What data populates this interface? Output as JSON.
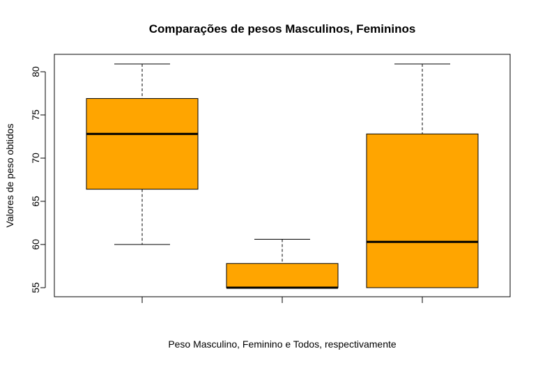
{
  "chart_data": {
    "type": "box",
    "title": "Comparações de pesos Masculinos, Femininos",
    "xlabel": "Peso Masculino, Feminino e Todos, respectivamente",
    "ylabel": "Valores de peso obtidos",
    "ylim": [
      54,
      82
    ],
    "yticks": [
      55,
      60,
      65,
      70,
      75,
      80
    ],
    "boxes": [
      {
        "whisker_low": 60,
        "q1": 66.4,
        "median": 72.8,
        "q3": 76.9,
        "whisker_high": 80.9
      },
      {
        "whisker_low": 55,
        "q1": 55,
        "median": 55,
        "q3": 57.8,
        "whisker_high": 60.6
      },
      {
        "whisker_low": 55,
        "q1": 55,
        "median": 60.3,
        "q3": 72.8,
        "whisker_high": 80.9
      }
    ],
    "box_color": "#FFA500",
    "grid": false
  }
}
